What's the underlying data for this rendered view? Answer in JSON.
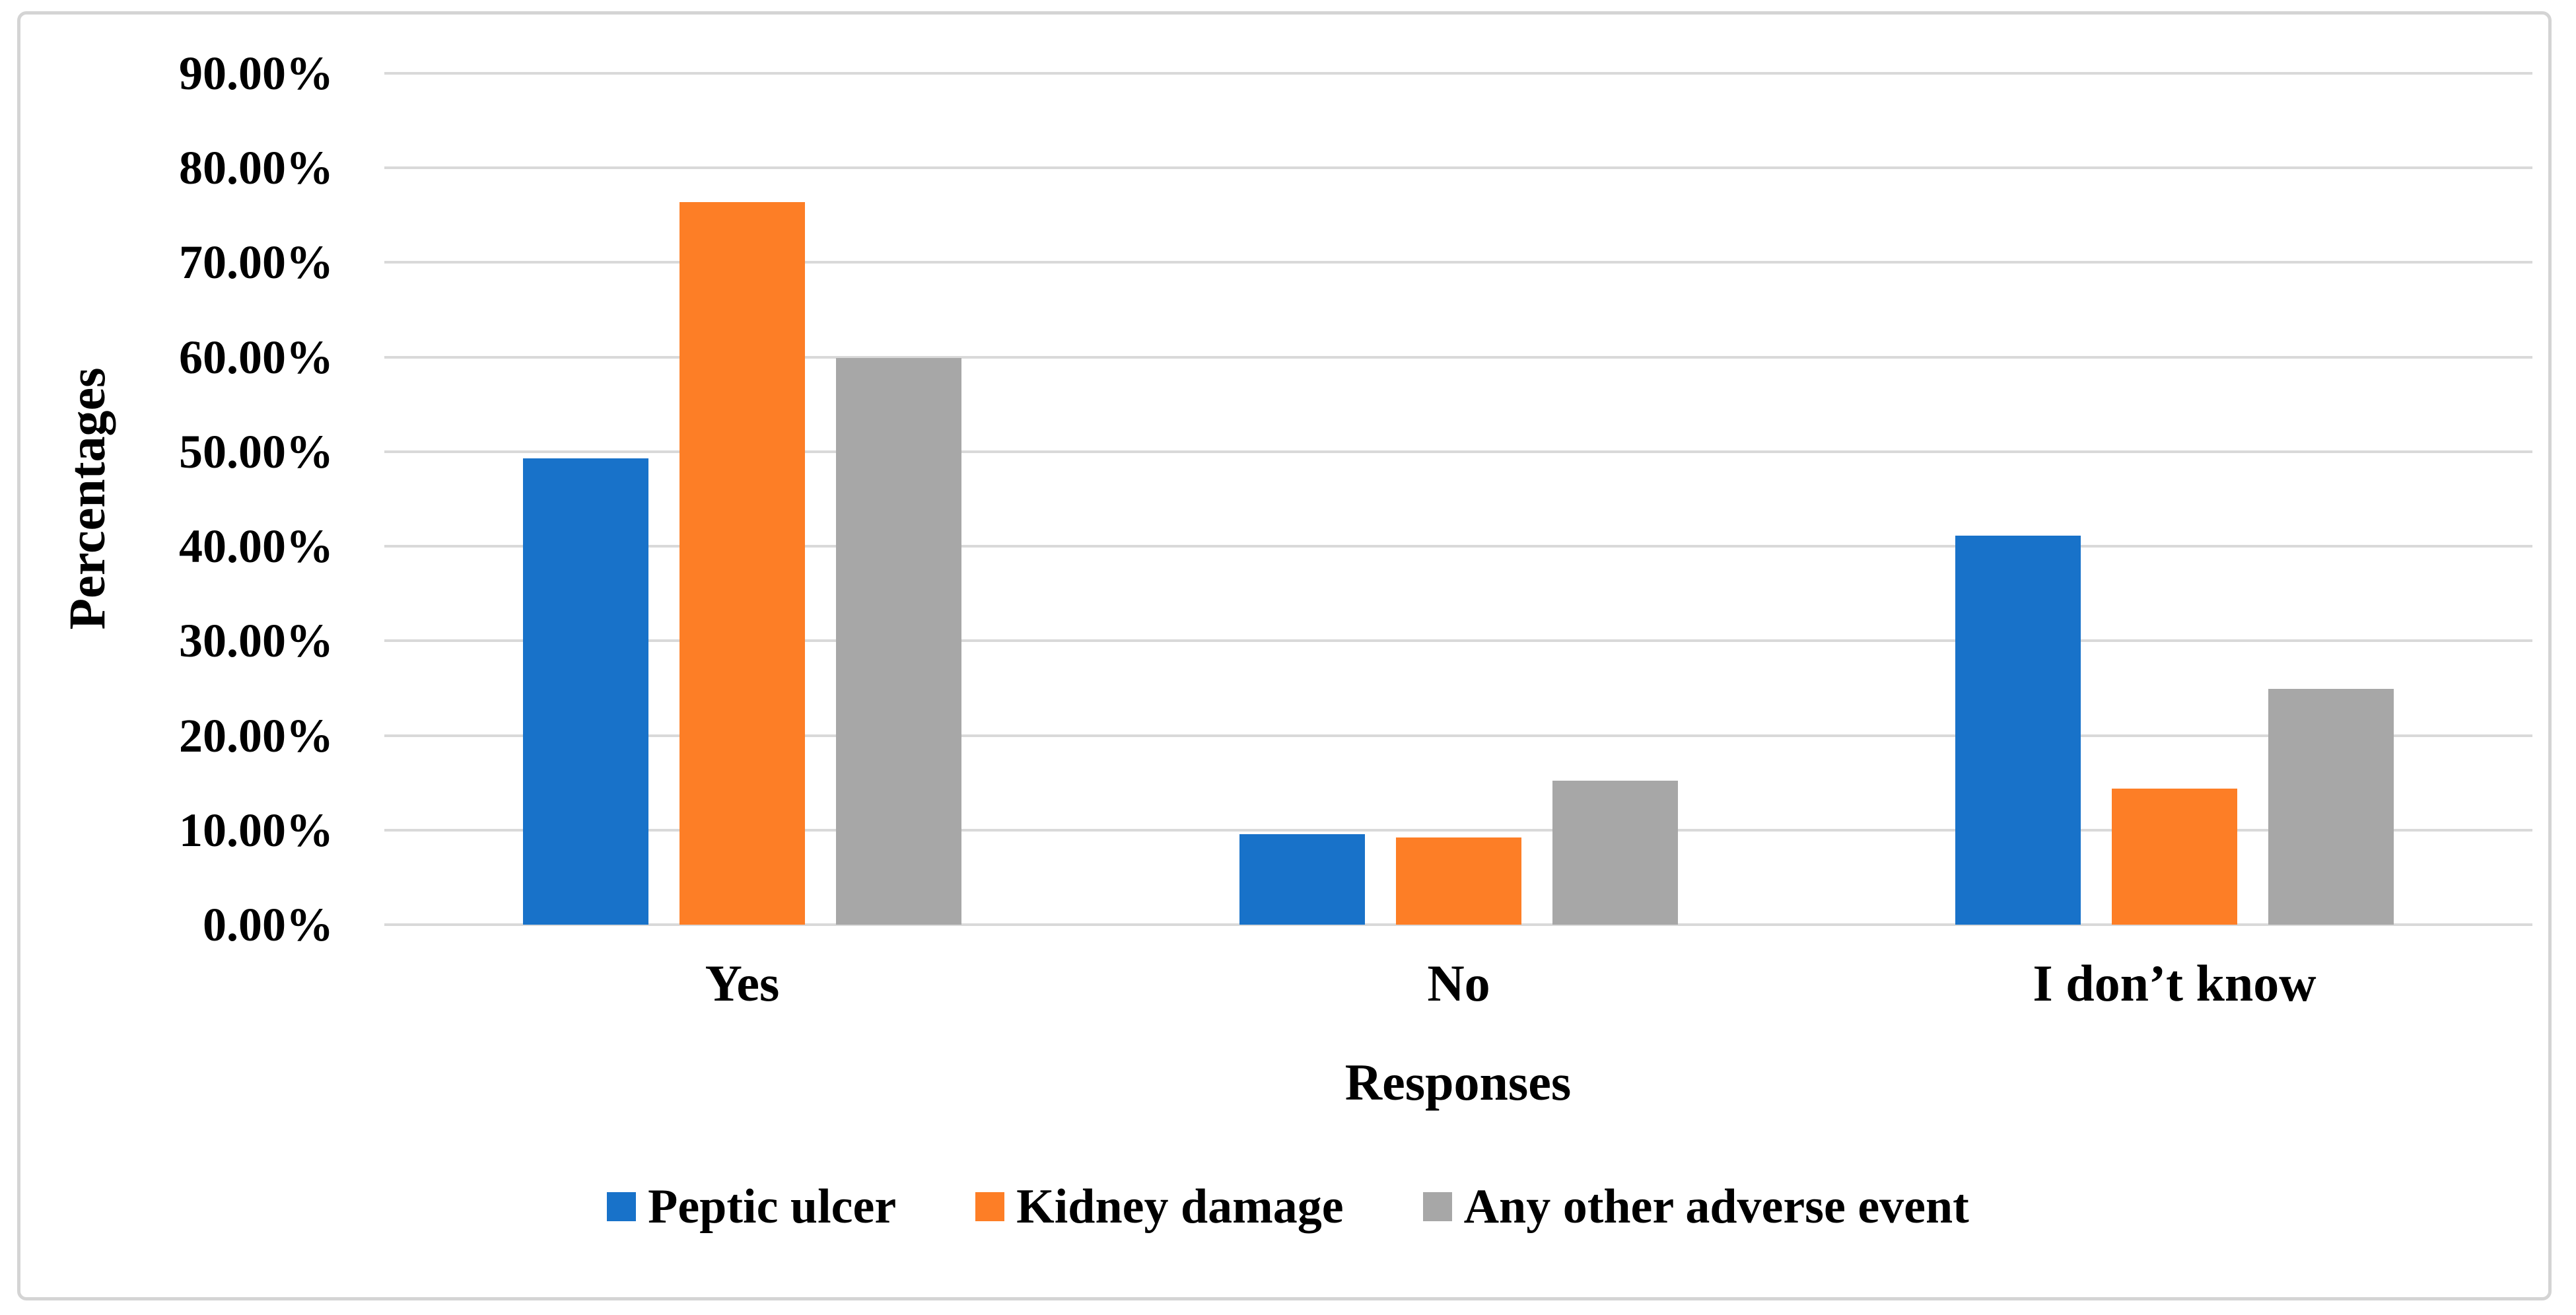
{
  "chart_data": {
    "type": "bar",
    "title": "",
    "categories": [
      "Yes",
      "No",
      "I don’t know"
    ],
    "series": [
      {
        "name": "Peptic ulcer",
        "color": "#1872C9",
        "values": [
          49.3,
          9.6,
          41.1
        ]
      },
      {
        "name": "Kidney damage",
        "color": "#FD7E26",
        "values": [
          76.4,
          9.2,
          14.4
        ]
      },
      {
        "name": "Any other adverse event",
        "color": "#A7A7A7",
        "values": [
          59.9,
          15.2,
          24.9
        ]
      }
    ],
    "xlabel": "Responses",
    "ylabel": "Percentages",
    "ylim": [
      0,
      90
    ],
    "ytick_step": 10,
    "yticks": [
      "90.00%",
      "80.00%",
      "70.00%",
      "60.00%",
      "50.00%",
      "40.00%",
      "30.00%",
      "20.00%",
      "10.00%",
      "0.00%"
    ],
    "grid": true,
    "legend_position": "bottom",
    "colors": {
      "gridline": "#D9D9D9",
      "chart_border": "#D4D4D4",
      "background": "#FFFFFF",
      "text": "#000000"
    }
  }
}
